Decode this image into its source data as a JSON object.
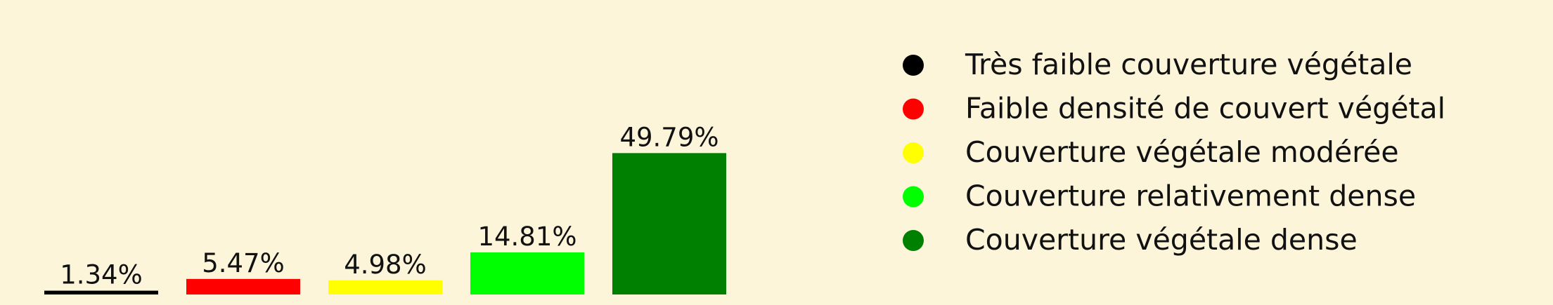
{
  "chart_data": {
    "type": "bar",
    "title": "",
    "xlabel": "",
    "ylabel": "",
    "grid": false,
    "legend_position": "right",
    "categories": [
      "Très faible couverture végétale",
      "Faible densité de couvert végétal",
      "Couverture végétale modérée",
      "Couverture relativement dense",
      "Couverture végétale dense"
    ],
    "values": [
      1.34,
      5.47,
      4.98,
      14.81,
      49.79
    ],
    "value_labels": [
      "1.34%",
      "5.47%",
      "4.98%",
      "14.81%",
      "49.79%"
    ],
    "colors": [
      "#000000",
      "#ff0000",
      "#ffff00",
      "#00ff00",
      "#008000"
    ],
    "legend": [
      {
        "label": "Très faible couverture végétale",
        "color": "#000000"
      },
      {
        "label": "Faible densité de couvert végétal",
        "color": "#ff0000"
      },
      {
        "label": "Couverture végétale modérée",
        "color": "#ffff00"
      },
      {
        "label": "Couverture relativement dense",
        "color": "#00ff00"
      },
      {
        "label": "Couverture végétale dense",
        "color": "#008000"
      }
    ]
  }
}
